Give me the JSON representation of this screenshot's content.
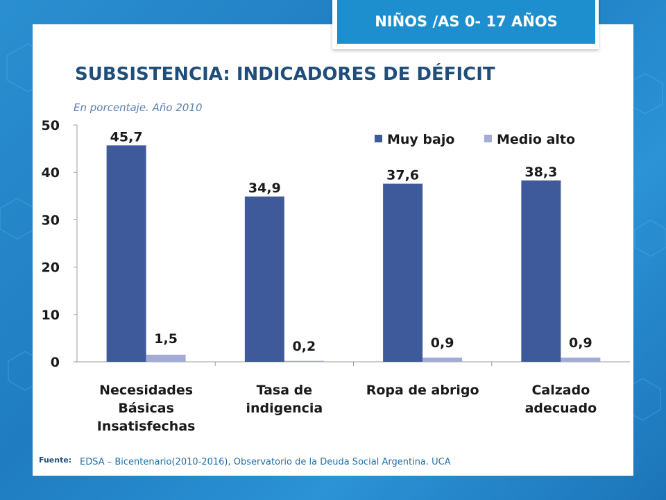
{
  "badge": "NIÑOS /AS 0- 17 AÑOS",
  "title": "SUBSISTENCIA: INDICADORES DE DÉFICIT",
  "subtitle": "En porcentaje. Año 2010",
  "footer": {
    "label": "Fuente:",
    "text": "EDSA – Bicentenario(2010-2016), Observatorio de la Deuda Social Argentina. UCA"
  },
  "colors": {
    "muy_bajo": "#3e5a9a",
    "medio_alto": "#a3acd4"
  },
  "chart_data": {
    "type": "bar",
    "categories": [
      [
        "Necesidades",
        "Básicas",
        "Insatisfechas"
      ],
      [
        "Tasa de",
        "indigencia"
      ],
      [
        "Ropa de abrigo"
      ],
      [
        "Calzado",
        "adecuado"
      ]
    ],
    "series": [
      {
        "name": "Muy bajo",
        "values": [
          45.7,
          34.9,
          37.6,
          38.3
        ],
        "labels": [
          "45,7",
          "34,9",
          "37,6",
          "38,3"
        ]
      },
      {
        "name": "Medio alto",
        "values": [
          1.5,
          0.2,
          0.9,
          0.9
        ],
        "labels": [
          "1,5",
          "0,2",
          "0,9",
          "0,9"
        ]
      }
    ],
    "ylim": [
      0,
      50
    ],
    "yticks": [
      0,
      10,
      20,
      30,
      40,
      50
    ],
    "grid": false,
    "legend": "top-right"
  }
}
